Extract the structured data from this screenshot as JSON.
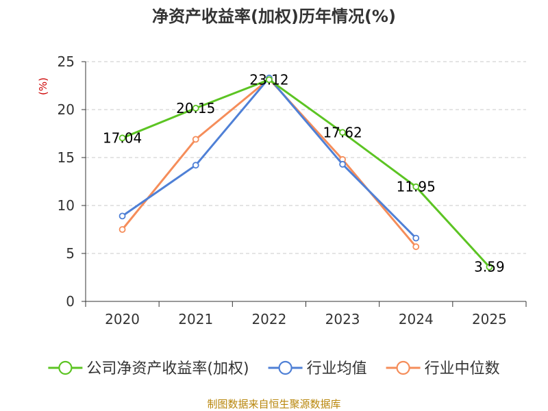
{
  "chart_data": {
    "type": "line",
    "title": "净资产收益率(加权)历年情况(%)",
    "ylabel": "(%)",
    "xlabel": "",
    "categories": [
      "2020",
      "2021",
      "2022",
      "2023",
      "2024",
      "2025"
    ],
    "ylim": [
      0,
      25
    ],
    "yticks": [
      0,
      5,
      10,
      15,
      20,
      25
    ],
    "grid": true,
    "legend_position": "bottom",
    "series": [
      {
        "name": "公司净资产收益率(加权)",
        "color": "#5cc423",
        "values": [
          17.04,
          20.15,
          23.12,
          17.62,
          11.95,
          3.59
        ],
        "labels": [
          "17.04",
          "20.15",
          "23.12",
          "17.62",
          "11.95",
          "3.59"
        ]
      },
      {
        "name": "行业均值",
        "color": "#4f80d6",
        "values": [
          8.9,
          14.2,
          23.3,
          14.3,
          6.6,
          null
        ]
      },
      {
        "name": "行业中位数",
        "color": "#f58d5a",
        "values": [
          7.5,
          16.9,
          23.2,
          14.8,
          5.7,
          null
        ]
      }
    ]
  },
  "source_text": "制图数据来自恒生聚源数据库"
}
